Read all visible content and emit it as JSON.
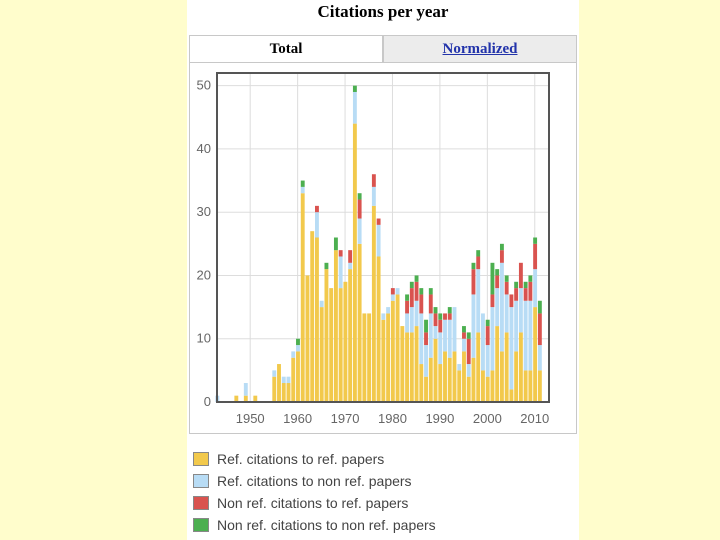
{
  "header": {
    "title": "Citations per year"
  },
  "tabs": [
    {
      "label": "Total",
      "active": true
    },
    {
      "label": "Normalized",
      "active": false
    }
  ],
  "legend": [
    {
      "label": "Ref. citations to ref. papers",
      "color": "#f2c94c"
    },
    {
      "label": "Ref. citations to non ref. papers",
      "color": "#b8dcf5"
    },
    {
      "label": "Non ref. citations to ref. papers",
      "color": "#d9534f"
    },
    {
      "label": "Non ref. citations to non ref. papers",
      "color": "#4caf50"
    }
  ],
  "chart_data": {
    "type": "bar",
    "stacked": true,
    "xlim": [
      1943,
      2013
    ],
    "ylim": [
      0,
      52
    ],
    "xticks": [
      1950,
      1960,
      1970,
      1980,
      1990,
      2000,
      2010
    ],
    "yticks": [
      0,
      10,
      20,
      30,
      40,
      50
    ],
    "grid": true,
    "legend_position": "bottom",
    "x": [
      1943,
      1947,
      1949,
      1951,
      1955,
      1956,
      1957,
      1958,
      1959,
      1960,
      1961,
      1962,
      1963,
      1964,
      1965,
      1966,
      1967,
      1968,
      1969,
      1970,
      1971,
      1972,
      1973,
      1974,
      1975,
      1976,
      1977,
      1978,
      1979,
      1980,
      1981,
      1982,
      1983,
      1984,
      1985,
      1986,
      1987,
      1988,
      1989,
      1990,
      1991,
      1992,
      1993,
      1994,
      1995,
      1996,
      1997,
      1998,
      1999,
      2000,
      2001,
      2002,
      2003,
      2004,
      2005,
      2006,
      2007,
      2008,
      2009,
      2010,
      2011
    ],
    "series": [
      {
        "name": "Ref. citations to ref. papers",
        "color": "#f2c94c",
        "values": [
          0,
          1,
          1,
          1,
          4,
          6,
          3,
          3,
          7,
          8,
          33,
          20,
          27,
          26,
          15,
          21,
          18,
          24,
          18,
          19,
          21,
          44,
          25,
          14,
          14,
          31,
          23,
          13,
          14,
          16,
          17,
          12,
          11,
          11,
          12,
          6,
          4,
          7,
          10,
          6,
          8,
          7,
          8,
          5,
          8,
          4,
          7,
          11,
          5,
          4,
          5,
          12,
          8,
          11,
          2,
          8,
          11,
          5,
          5,
          15,
          5
        ]
      },
      {
        "name": "Ref. citations to non ref. papers",
        "color": "#b8dcf5",
        "values": [
          1,
          0,
          2,
          0,
          1,
          0,
          1,
          1,
          1,
          1,
          1,
          0,
          0,
          4,
          1,
          0,
          0,
          0,
          5,
          0,
          1,
          5,
          4,
          0,
          0,
          3,
          5,
          1,
          1,
          1,
          1,
          0,
          3,
          4,
          4,
          8,
          5,
          7,
          2,
          5,
          5,
          6,
          7,
          1,
          2,
          2,
          10,
          10,
          9,
          5,
          10,
          6,
          14,
          6,
          13,
          8,
          7,
          11,
          11,
          6,
          4
        ]
      },
      {
        "name": "Non ref. citations to ref. papers",
        "color": "#d9534f",
        "values": [
          0,
          0,
          0,
          0,
          0,
          0,
          0,
          0,
          0,
          0,
          0,
          0,
          0,
          1,
          0,
          0,
          0,
          0,
          1,
          0,
          2,
          0,
          3,
          0,
          0,
          2,
          1,
          0,
          0,
          1,
          0,
          0,
          2,
          3,
          3,
          3,
          2,
          3,
          2,
          2,
          1,
          1,
          0,
          0,
          1,
          4,
          4,
          2,
          0,
          3,
          2,
          2,
          2,
          2,
          2,
          2,
          4,
          2,
          3,
          4,
          5
        ]
      },
      {
        "name": "Non ref. citations to non ref. papers",
        "color": "#4caf50",
        "values": [
          0,
          0,
          0,
          0,
          0,
          0,
          0,
          0,
          0,
          1,
          1,
          0,
          0,
          0,
          0,
          1,
          0,
          2,
          0,
          0,
          0,
          1,
          1,
          0,
          0,
          0,
          0,
          0,
          0,
          0,
          0,
          0,
          1,
          1,
          1,
          1,
          2,
          1,
          1,
          1,
          0,
          1,
          0,
          0,
          1,
          1,
          1,
          1,
          0,
          1,
          5,
          1,
          1,
          1,
          0,
          1,
          0,
          1,
          1,
          1,
          2
        ]
      }
    ]
  }
}
